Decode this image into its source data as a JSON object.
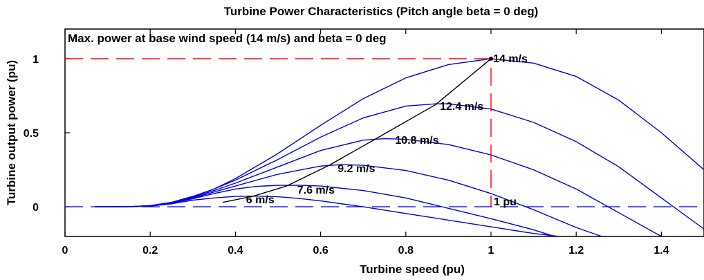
{
  "chart_data": {
    "type": "line",
    "title": "Turbine Power Characteristics (Pitch angle beta = 0 deg)",
    "xlabel": "Turbine speed (pu)",
    "ylabel": "Turbine output power (pu)",
    "xlim": [
      0,
      1.5
    ],
    "ylim": [
      -0.2,
      1.2
    ],
    "xticks": [
      "0",
      "0.2",
      "0.4",
      "0.6",
      "0.8",
      "1",
      "1.2",
      "1.4"
    ],
    "xtick_values": [
      0,
      0.2,
      0.4,
      0.6,
      0.8,
      1.0,
      1.2,
      1.4
    ],
    "yticks": [
      "0",
      "0.5",
      "1"
    ],
    "ytick_values": [
      0,
      0.5,
      1.0
    ],
    "grid": false,
    "annotation": "Max. power at base wind speed (14 m/s) and beta = 0 deg",
    "point_label": "1 pu",
    "series": [
      {
        "name": "6 m/s",
        "color": "#0000dd",
        "x": [
          0.07,
          0.1,
          0.15,
          0.2,
          0.25,
          0.3,
          0.35,
          0.4,
          0.45,
          0.5,
          0.55,
          0.6,
          0.7,
          0.8,
          0.9,
          1.0,
          1.1,
          1.16
        ],
        "y": [
          0.0,
          0.0,
          0.001,
          0.005,
          0.02,
          0.045,
          0.06,
          0.07,
          0.072,
          0.068,
          0.056,
          0.04,
          0.0,
          -0.045,
          -0.09,
          -0.135,
          -0.18,
          -0.2
        ]
      },
      {
        "name": "7.6 m/s",
        "color": "#0000dd",
        "x": [
          0.07,
          0.1,
          0.15,
          0.2,
          0.25,
          0.3,
          0.35,
          0.4,
          0.45,
          0.5,
          0.55,
          0.6,
          0.7,
          0.8,
          0.9,
          1.0,
          1.1,
          1.15
        ],
        "y": [
          0.0,
          0.0,
          0.001,
          0.006,
          0.024,
          0.055,
          0.09,
          0.12,
          0.138,
          0.145,
          0.146,
          0.14,
          0.11,
          0.06,
          -0.01,
          -0.08,
          -0.155,
          -0.2
        ]
      },
      {
        "name": "9.2 m/s",
        "color": "#0000dd",
        "x": [
          0.07,
          0.1,
          0.15,
          0.2,
          0.25,
          0.3,
          0.35,
          0.4,
          0.5,
          0.6,
          0.65,
          0.7,
          0.8,
          0.9,
          1.0,
          1.1,
          1.2,
          1.26
        ],
        "y": [
          0.0,
          0.0,
          0.001,
          0.007,
          0.026,
          0.06,
          0.1,
          0.14,
          0.22,
          0.275,
          0.285,
          0.28,
          0.245,
          0.18,
          0.09,
          -0.02,
          -0.14,
          -0.2
        ]
      },
      {
        "name": "10.8 m/s",
        "color": "#0000dd",
        "x": [
          0.07,
          0.1,
          0.15,
          0.2,
          0.25,
          0.3,
          0.35,
          0.4,
          0.5,
          0.6,
          0.7,
          0.75,
          0.8,
          0.9,
          1.0,
          1.1,
          1.2,
          1.3,
          1.4
        ],
        "y": [
          0.0,
          0.0,
          0.001,
          0.008,
          0.028,
          0.065,
          0.11,
          0.16,
          0.27,
          0.38,
          0.45,
          0.46,
          0.455,
          0.42,
          0.35,
          0.25,
          0.12,
          -0.04,
          -0.2
        ]
      },
      {
        "name": "12.4 m/s",
        "color": "#0000dd",
        "x": [
          0.07,
          0.1,
          0.15,
          0.2,
          0.25,
          0.3,
          0.35,
          0.4,
          0.5,
          0.6,
          0.7,
          0.8,
          0.87,
          0.9,
          1.0,
          1.1,
          1.2,
          1.3,
          1.4,
          1.5
        ],
        "y": [
          0.0,
          0.0,
          0.001,
          0.008,
          0.03,
          0.07,
          0.12,
          0.18,
          0.32,
          0.47,
          0.6,
          0.68,
          0.695,
          0.695,
          0.66,
          0.57,
          0.44,
          0.27,
          0.06,
          -0.15
        ]
      },
      {
        "name": "14 m/s",
        "color": "#0000dd",
        "x": [
          0.07,
          0.1,
          0.15,
          0.2,
          0.25,
          0.3,
          0.35,
          0.4,
          0.5,
          0.6,
          0.7,
          0.8,
          0.9,
          1.0,
          1.1,
          1.2,
          1.3,
          1.4,
          1.5
        ],
        "y": [
          0.0,
          0.0,
          0.001,
          0.008,
          0.03,
          0.07,
          0.12,
          0.19,
          0.36,
          0.55,
          0.73,
          0.87,
          0.96,
          1.0,
          0.97,
          0.88,
          0.72,
          0.5,
          0.25
        ]
      },
      {
        "name": "",
        "color": "#000000",
        "x": [
          0.37,
          0.44,
          0.52,
          0.62,
          0.73,
          0.87,
          1.0
        ],
        "y": [
          0.03,
          0.07,
          0.14,
          0.28,
          0.46,
          0.69,
          1.0
        ]
      },
      {
        "name": "",
        "color": "#ff0000",
        "dashed": true,
        "x": [
          0,
          1.0,
          1.0
        ],
        "y": [
          1.0,
          1.0,
          0
        ]
      },
      {
        "name": "",
        "color": "#0000ff",
        "dashed": true,
        "x": [
          0,
          1.5
        ],
        "y": [
          0,
          0
        ]
      }
    ]
  }
}
